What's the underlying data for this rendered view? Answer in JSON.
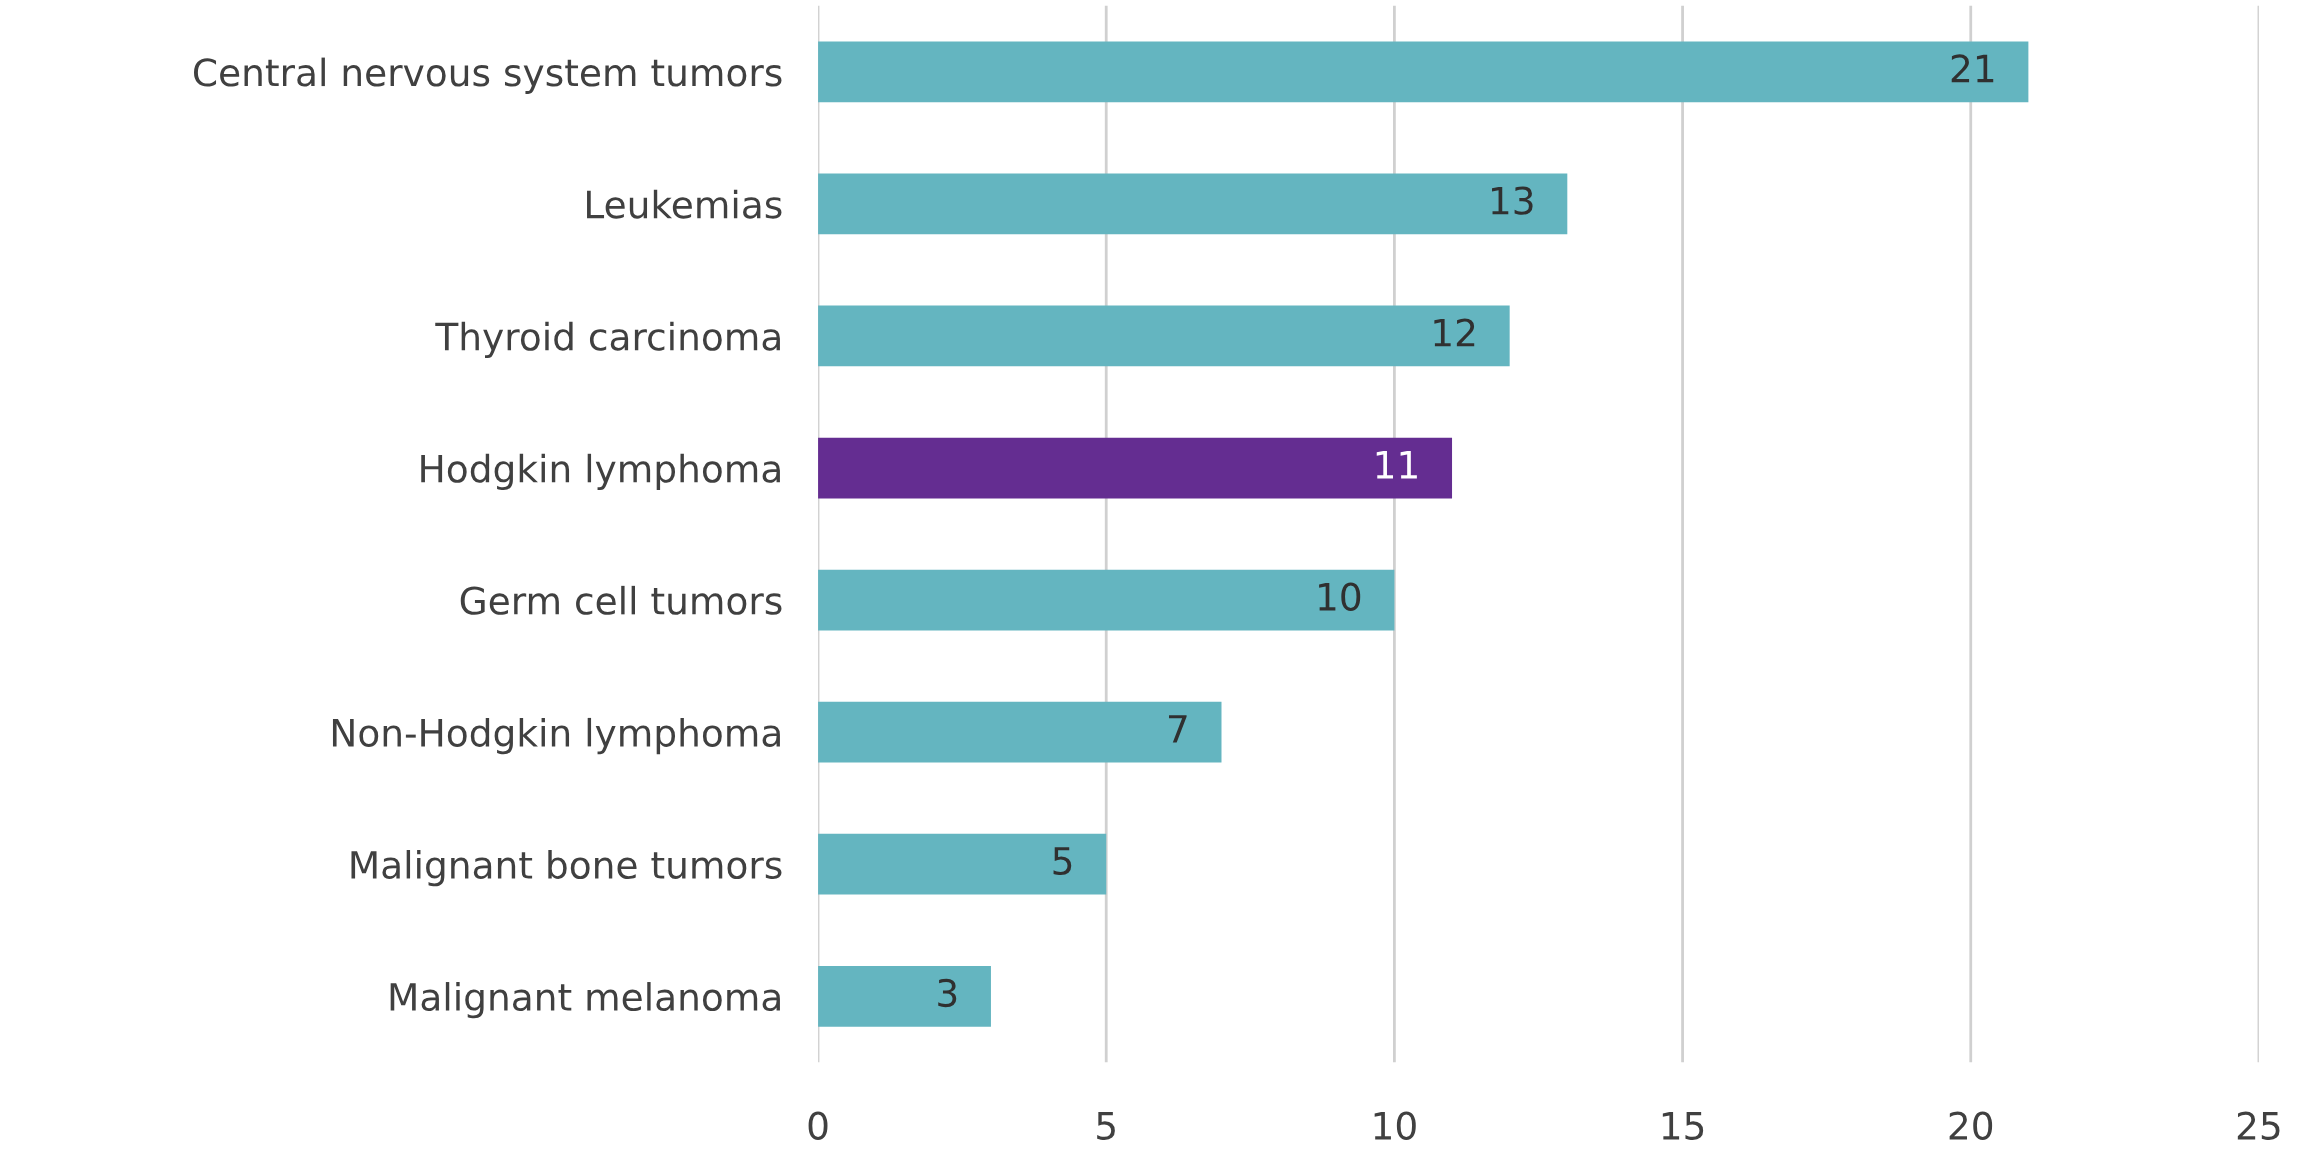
{
  "chart_data": {
    "type": "bar",
    "orientation": "horizontal",
    "categories": [
      "Central nervous system tumors",
      "Leukemias",
      "Thyroid carcinoma",
      "Hodgkin lymphoma",
      "Germ cell tumors",
      "Non-Hodgkin lymphoma",
      "Malignant bone tumors",
      "Malignant melanoma"
    ],
    "values": [
      21,
      13,
      12,
      11,
      10,
      7,
      5,
      3
    ],
    "colors": [
      "#64b5c0",
      "#64b5c0",
      "#64b5c0",
      "#642d91",
      "#64b5c0",
      "#64b5c0",
      "#64b5c0",
      "#64b5c0"
    ],
    "xlim": [
      0,
      25
    ],
    "xticks": [
      0,
      5,
      10,
      15,
      20,
      25
    ],
    "grid": "x",
    "data_labels": true,
    "legend": false
  }
}
